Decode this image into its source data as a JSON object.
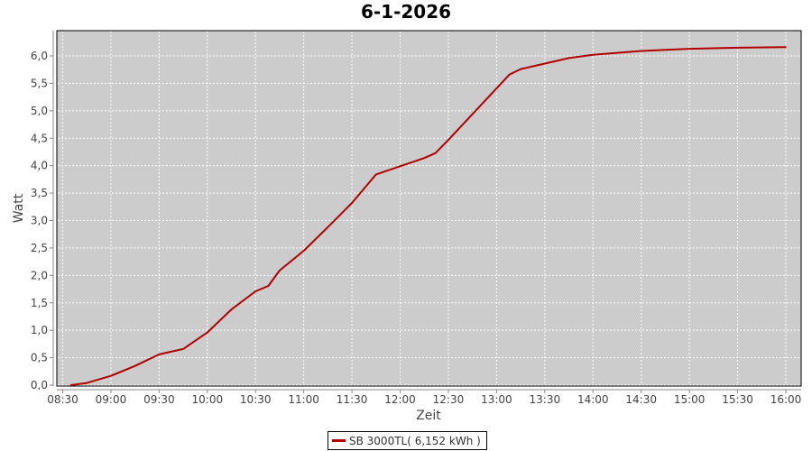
{
  "chart_data": {
    "type": "line",
    "title": "6-1-2026",
    "xlabel": "Zeit",
    "ylabel": "Watt",
    "xlim": [
      "08:30",
      "16:00"
    ],
    "ylim": [
      0,
      6.0
    ],
    "x_ticks": [
      "08:30",
      "09:00",
      "09:30",
      "10:00",
      "10:30",
      "11:00",
      "11:30",
      "12:00",
      "12:30",
      "13:00",
      "13:30",
      "14:00",
      "14:30",
      "15:00",
      "15:30",
      "16:00"
    ],
    "y_ticks": [
      "0,0",
      "0,5",
      "1,0",
      "1,5",
      "2,0",
      "2,5",
      "3,0",
      "3,5",
      "4,0",
      "4,5",
      "5,0",
      "5,5",
      "6,0"
    ],
    "grid": true,
    "background": "#cccccc",
    "legend_position": "bottom",
    "series": [
      {
        "name": "SB 3000TL( 6,152 kWh )",
        "color": "#b00000",
        "x": [
          "08:35",
          "08:45",
          "09:00",
          "09:15",
          "09:30",
          "09:45",
          "10:00",
          "10:15",
          "10:30",
          "10:38",
          "10:45",
          "11:00",
          "11:15",
          "11:30",
          "11:45",
          "12:00",
          "12:15",
          "12:22",
          "12:30",
          "13:00",
          "13:08",
          "13:15",
          "13:30",
          "13:45",
          "14:00",
          "14:30",
          "15:00",
          "15:30",
          "16:00"
        ],
        "y": [
          0.0,
          0.04,
          0.17,
          0.35,
          0.56,
          0.66,
          0.96,
          1.38,
          1.71,
          1.81,
          2.09,
          2.45,
          2.88,
          3.32,
          3.84,
          3.99,
          4.14,
          4.23,
          4.47,
          5.41,
          5.66,
          5.76,
          5.86,
          5.96,
          6.02,
          6.09,
          6.13,
          6.15,
          6.16
        ]
      }
    ]
  }
}
